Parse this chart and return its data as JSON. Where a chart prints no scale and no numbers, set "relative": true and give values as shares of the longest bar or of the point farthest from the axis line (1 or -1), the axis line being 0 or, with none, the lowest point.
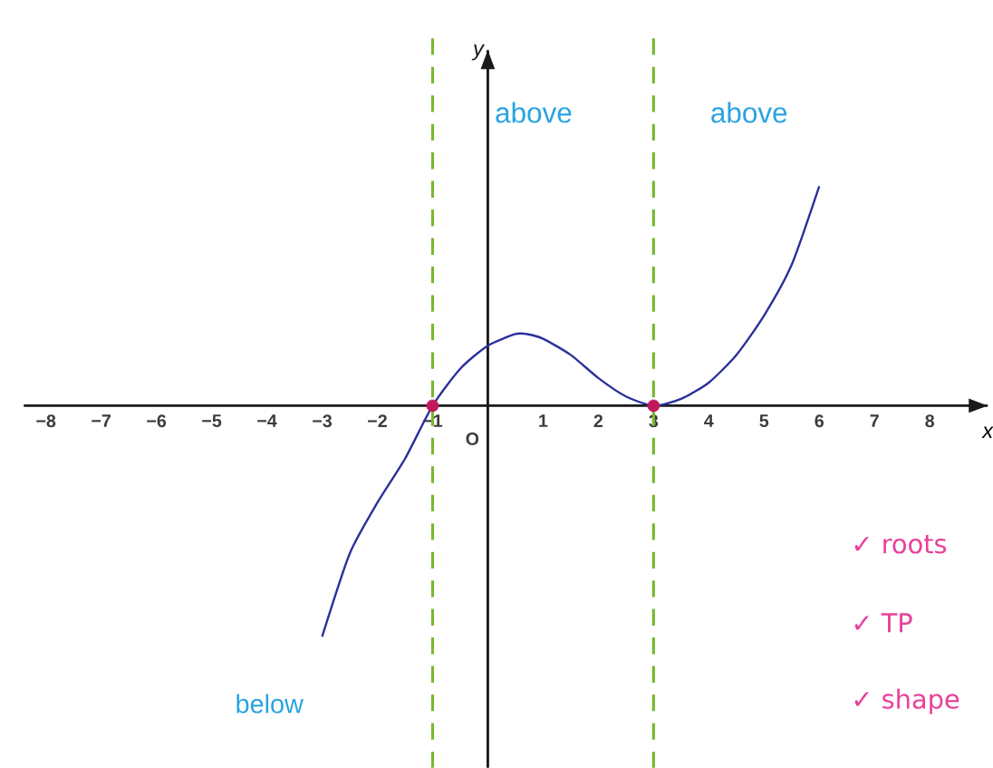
{
  "chart_data": {
    "type": "line",
    "relative": true,
    "xlabel": "x",
    "xlim": [
      -8.4,
      9.05
    ],
    "xticks": [
      {
        "value": -8,
        "label": "−8"
      },
      {
        "value": -7,
        "label": "−7"
      },
      {
        "value": -6,
        "label": "−6"
      },
      {
        "value": -5,
        "label": "−5"
      },
      {
        "value": -4,
        "label": "−4"
      },
      {
        "value": -3,
        "label": "−3"
      },
      {
        "value": -2,
        "label": "−2"
      },
      {
        "value": -1,
        "label": "−1"
      },
      1,
      2,
      3,
      4,
      5,
      6,
      7,
      8
    ],
    "series": [
      {
        "color": "#2b2f9a",
        "x": [
          -3,
          -2.5,
          -2,
          -1.5,
          -1,
          -0.5,
          0,
          0.5,
          0.71,
          1,
          1.5,
          2,
          2.5,
          3,
          3.5,
          4,
          4.5,
          5,
          5.5,
          6
        ],
        "values": [
          -1,
          -0.64,
          -0.42,
          -0.23,
          0,
          0.16,
          0.26,
          0.31,
          0.31,
          0.29,
          0.22,
          0.12,
          0.04,
          0,
          0.03,
          0.1,
          0.22,
          0.39,
          0.61,
          0.95
        ]
      },
      {
        "type": "scatter",
        "color": "#c2185b",
        "x": [
          -1,
          3
        ],
        "values": [
          0,
          0
        ]
      }
    ],
    "ref_lines": [
      {
        "axis": "x",
        "value": -1,
        "color": "#77b82e",
        "line_style": "dashed"
      },
      {
        "axis": "x",
        "value": 3,
        "color": "#77b82e",
        "line_style": "dashed"
      }
    ],
    "annotations": [
      "O",
      "above",
      "above",
      "below",
      "✓ roots",
      "✓ TP",
      "✓ shape",
      "y"
    ]
  }
}
